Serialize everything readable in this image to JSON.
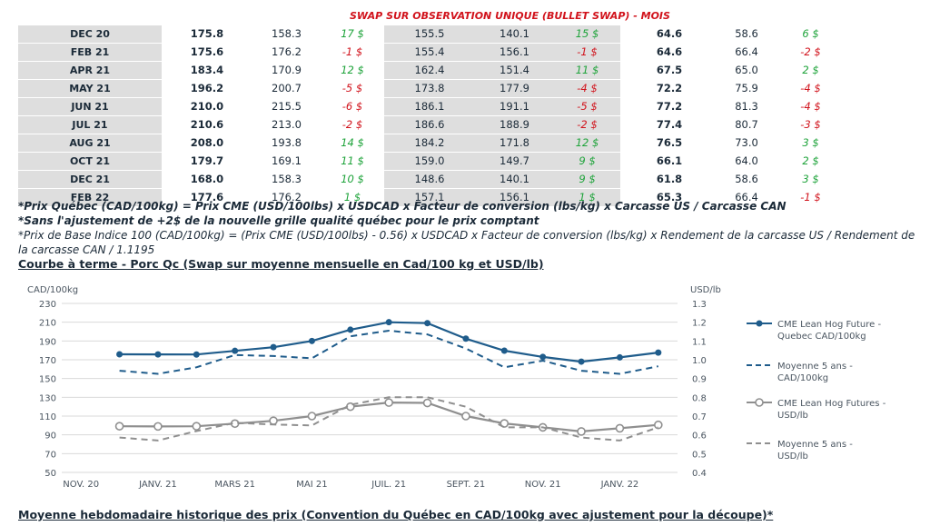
{
  "table": {
    "title": "SWAP SUR OBSERVATION UNIQUE (BULLET SWAP) - MOIS",
    "rows": [
      {
        "month": "DEC 20",
        "c1": "175.8",
        "c2": "158.3",
        "d1": "17 $",
        "s1": "pos",
        "c3": "155.5",
        "c4": "140.1",
        "d2": "15 $",
        "s2": "pos",
        "c5": "64.6",
        "c6": "58.6",
        "d3": "6 $",
        "s3": "pos"
      },
      {
        "month": "FEB 21",
        "c1": "175.6",
        "c2": "176.2",
        "d1": "-1 $",
        "s1": "neg",
        "c3": "155.4",
        "c4": "156.1",
        "d2": "-1 $",
        "s2": "neg",
        "c5": "64.6",
        "c6": "66.4",
        "d3": "-2 $",
        "s3": "neg"
      },
      {
        "month": "APR 21",
        "c1": "183.4",
        "c2": "170.9",
        "d1": "12 $",
        "s1": "pos",
        "c3": "162.4",
        "c4": "151.4",
        "d2": "11 $",
        "s2": "pos",
        "c5": "67.5",
        "c6": "65.0",
        "d3": "2 $",
        "s3": "pos"
      },
      {
        "month": "MAY 21",
        "c1": "196.2",
        "c2": "200.7",
        "d1": "-5 $",
        "s1": "neg",
        "c3": "173.8",
        "c4": "177.9",
        "d2": "-4 $",
        "s2": "neg",
        "c5": "72.2",
        "c6": "75.9",
        "d3": "-4 $",
        "s3": "neg"
      },
      {
        "month": "JUN 21",
        "c1": "210.0",
        "c2": "215.5",
        "d1": "-6 $",
        "s1": "neg",
        "c3": "186.1",
        "c4": "191.1",
        "d2": "-5 $",
        "s2": "neg",
        "c5": "77.2",
        "c6": "81.3",
        "d3": "-4 $",
        "s3": "neg"
      },
      {
        "month": "JUL 21",
        "c1": "210.6",
        "c2": "213.0",
        "d1": "-2 $",
        "s1": "neg",
        "c3": "186.6",
        "c4": "188.9",
        "d2": "-2 $",
        "s2": "neg",
        "c5": "77.4",
        "c6": "80.7",
        "d3": "-3 $",
        "s3": "neg"
      },
      {
        "month": "AUG 21",
        "c1": "208.0",
        "c2": "193.8",
        "d1": "14 $",
        "s1": "pos",
        "c3": "184.2",
        "c4": "171.8",
        "d2": "12 $",
        "s2": "pos",
        "c5": "76.5",
        "c6": "73.0",
        "d3": "3 $",
        "s3": "pos"
      },
      {
        "month": "OCT 21",
        "c1": "179.7",
        "c2": "169.1",
        "d1": "11 $",
        "s1": "pos",
        "c3": "159.0",
        "c4": "149.7",
        "d2": "9 $",
        "s2": "pos",
        "c5": "66.1",
        "c6": "64.0",
        "d3": "2 $",
        "s3": "pos"
      },
      {
        "month": "DEC 21",
        "c1": "168.0",
        "c2": "158.3",
        "d1": "10 $",
        "s1": "pos",
        "c3": "148.6",
        "c4": "140.1",
        "d2": "9 $",
        "s2": "pos",
        "c5": "61.8",
        "c6": "58.6",
        "d3": "3 $",
        "s3": "pos"
      },
      {
        "month": "FEB 22",
        "c1": "177.6",
        "c2": "176.2",
        "d1": "1 $",
        "s1": "pos",
        "c3": "157.1",
        "c4": "156.1",
        "d2": "1 $",
        "s2": "pos",
        "c5": "65.3",
        "c6": "66.4",
        "d3": "-1 $",
        "s3": "neg"
      }
    ]
  },
  "notes": {
    "line1": "*Prix Québec (CAD/100kg) = Prix CME (USD/100lbs) x USDCAD x Facteur de conversion (lbs/kg) x Carcasse US / Carcasse CAN",
    "line2": "*Sans l'ajustement de +2$ de la nouvelle grille qualité québec pour le prix comptant",
    "line3": "*Prix de Base Indice 100 (CAD/100kg) = (Prix CME (USD/100lbs) - 0.56) x USDCAD x Facteur de conversion (lbs/kg) x Rendement de la carcasse US / Rendement de la carcasse CAN / 1.1195"
  },
  "section1_title": "Courbe à terme - Porc Qc (Swap sur moyenne mensuelle en Cad/100 kg et USD/lb)",
  "section2_title": "Moyenne hebdomadaire historique des prix (Convention du Québec en CAD/100kg avec ajustement pour la découpe)*",
  "chart_data": {
    "type": "line",
    "ylabel_left": "CAD/100kg",
    "ylabel_right": "USD/lb",
    "ylim_left": [
      50,
      230
    ],
    "ylim_right": [
      0.4,
      1.3
    ],
    "yticks_left": [
      "50",
      "70",
      "90",
      "110",
      "130",
      "150",
      "170",
      "190",
      "210",
      "230"
    ],
    "yticks_right": [
      "0.4",
      "0.5",
      "0.6",
      "0.7",
      "0.8",
      "0.9",
      "1.0",
      "1.1",
      "1.2",
      "1.3"
    ],
    "xtick_labels": [
      "NOV. 20",
      "JANV. 21",
      "MARS 21",
      "MAI 21",
      "JUIL. 21",
      "SEPT. 21",
      "NOV. 21",
      "JANV. 22"
    ],
    "x": [
      "2020-11",
      "2020-12",
      "2021-01",
      "2021-02",
      "2021-03",
      "2021-04",
      "2021-05",
      "2021-06",
      "2021-07",
      "2021-08",
      "2021-09",
      "2021-10",
      "2021-11",
      "2021-12",
      "2022-01",
      "2022-02"
    ],
    "grid": true,
    "legend_position": "right",
    "series": [
      {
        "name": "CME Lean Hog Future - Quebec CAD/100kg",
        "axis": "left",
        "color": "#1f5c8b",
        "style": "solid",
        "marker": "filled-circle",
        "values": [
          null,
          175.8,
          175.7,
          175.6,
          179.5,
          183.4,
          190.0,
          202.0,
          210.0,
          209.0,
          192.5,
          179.7,
          173.0,
          168.0,
          172.5,
          177.6
        ]
      },
      {
        "name": "Moyenne 5 ans - CAD/100kg",
        "axis": "left",
        "color": "#1f5c8b",
        "style": "dashed",
        "marker": "none",
        "values": [
          null,
          158.3,
          155.0,
          162.0,
          175.0,
          174.0,
          171.5,
          195.0,
          201.0,
          197.0,
          182.0,
          162.0,
          169.0,
          158.3,
          155.0,
          163.0
        ]
      },
      {
        "name": "CME Lean Hog Futures - USD/lb",
        "axis": "right",
        "color": "#8f8f8f",
        "style": "solid",
        "marker": "hollow-circle",
        "values": [
          null,
          0.646,
          0.645,
          0.646,
          0.66,
          0.675,
          0.7,
          0.75,
          0.772,
          0.77,
          0.7,
          0.661,
          0.64,
          0.618,
          0.635,
          0.653
        ]
      },
      {
        "name": "Moyenne 5 ans - USD/lb",
        "axis": "right",
        "color": "#8f8f8f",
        "style": "dashed",
        "marker": "none",
        "values": [
          null,
          0.586,
          0.57,
          0.62,
          0.664,
          0.655,
          0.65,
          0.76,
          0.8,
          0.8,
          0.75,
          0.64,
          0.64,
          0.586,
          0.57,
          0.64
        ]
      }
    ]
  }
}
